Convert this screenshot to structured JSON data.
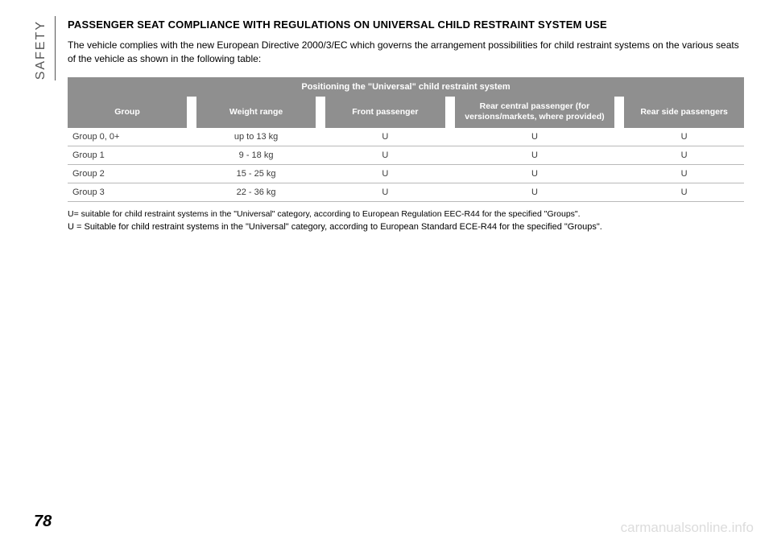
{
  "side_label": "SAFETY",
  "heading": "PASSENGER SEAT COMPLIANCE WITH REGULATIONS ON UNIVERSAL CHILD RESTRAINT SYSTEM USE",
  "intro": "The vehicle complies with the new European Directive 2000/3/EC which governs the arrangement possibilities for child restraint systems on the various seats of the vehicle as shown in the following table:",
  "table": {
    "title": "Positioning the \"Universal\" child restraint system",
    "columns": [
      "Group",
      "Weight range",
      "Front passenger",
      "Rear central passenger (for versions/markets, where provided)",
      "Rear side passengers"
    ],
    "col_widths": [
      "18%",
      "18%",
      "18%",
      "24%",
      "18%"
    ],
    "rows": [
      [
        "Group 0, 0+",
        "up to 13 kg",
        "U",
        "U",
        "U"
      ],
      [
        "Group 1",
        "9 - 18 kg",
        "U",
        "U",
        "U"
      ],
      [
        "Group 2",
        "15 - 25 kg",
        "U",
        "U",
        "U"
      ],
      [
        "Group 3",
        "22 - 36 kg",
        "U",
        "U",
        "U"
      ]
    ]
  },
  "note1": "U= suitable for child restraint systems in the \"Universal\" category, according to European Regulation EEC-R44 for the specified \"Groups\".",
  "note2": "U = Suitable for child restraint systems in the \"Universal\" category, according to European Standard ECE-R44 for the specified \"Groups\".",
  "page_number": "78",
  "watermark": "carmanualsonline.info"
}
